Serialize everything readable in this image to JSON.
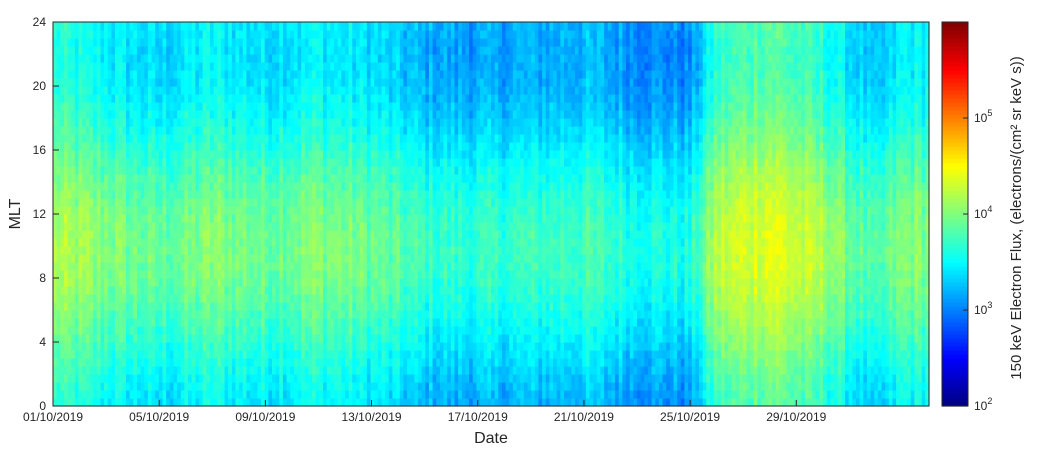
{
  "chart_data": {
    "type": "heatmap",
    "xlabel": "Date",
    "ylabel": "MLT",
    "x_range": [
      "01/10/2019",
      "03/11/2019"
    ],
    "x_ticks": [
      "01/10/2019",
      "05/10/2019",
      "09/10/2019",
      "13/10/2019",
      "17/10/2019",
      "21/10/2019",
      "25/10/2019",
      "29/10/2019"
    ],
    "y_range": [
      0,
      24
    ],
    "y_ticks": [
      "0",
      "4",
      "8",
      "12",
      "16",
      "20",
      "24"
    ],
    "colormap": "jet",
    "colorbar": {
      "label": "150 keV Electron Flux, (electrons/(cm² sr keV s))",
      "scale": "log",
      "range": [
        100,
        1000000
      ],
      "ticks": [
        {
          "base": "10",
          "exp": "2"
        },
        {
          "base": "10",
          "exp": "3"
        },
        {
          "base": "10",
          "exp": "4"
        },
        {
          "base": "10",
          "exp": "5"
        }
      ]
    },
    "mean_log10_flux_by_day": [
      {
        "date": "01/10/2019",
        "log10_flux": 3.9
      },
      {
        "date": "03/10/2019",
        "log10_flux": 3.75
      },
      {
        "date": "05/10/2019",
        "log10_flux": 3.6
      },
      {
        "date": "07/10/2019",
        "log10_flux": 3.75
      },
      {
        "date": "09/10/2019",
        "log10_flux": 3.65
      },
      {
        "date": "11/10/2019",
        "log10_flux": 3.75
      },
      {
        "date": "13/10/2019",
        "log10_flux": 3.65
      },
      {
        "date": "15/10/2019",
        "log10_flux": 3.45
      },
      {
        "date": "17/10/2019",
        "log10_flux": 3.4
      },
      {
        "date": "19/10/2019",
        "log10_flux": 3.45
      },
      {
        "date": "21/10/2019",
        "log10_flux": 3.5
      },
      {
        "date": "23/10/2019",
        "log10_flux": 3.35
      },
      {
        "date": "25/10/2019",
        "log10_flux": 3.3
      },
      {
        "date": "26/10/2019",
        "log10_flux": 3.95
      },
      {
        "date": "28/10/2019",
        "log10_flux": 4.15
      },
      {
        "date": "30/10/2019",
        "log10_flux": 3.9
      },
      {
        "date": "01/11/2019",
        "log10_flux": 3.45
      },
      {
        "date": "02/11/2019",
        "log10_flux": 3.75
      }
    ],
    "mlt_modulation": {
      "peak_mlt": 10,
      "amplitude_log10": 0.28
    }
  }
}
